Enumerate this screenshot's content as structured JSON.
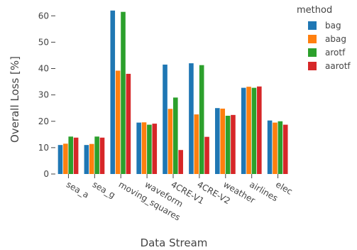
{
  "chart_data": {
    "type": "bar",
    "xlabel": "Data Stream",
    "ylabel": "Overall Loss [%]",
    "ylim": [
      0,
      66
    ],
    "yticks": [
      0,
      10,
      20,
      30,
      40,
      50,
      60
    ],
    "grid": false,
    "legend": {
      "title": "method",
      "placement": "top-right"
    },
    "categories": [
      "sea_a",
      "sea_g",
      "moving_squares",
      "waveform",
      "4CRE-V1",
      "4CRE-V2",
      "weather",
      "airlines",
      "elec"
    ],
    "series": [
      {
        "name": "bag",
        "color": "#1f77b4",
        "values": [
          11.0,
          11.0,
          62.0,
          19.5,
          41.5,
          42.0,
          25.0,
          32.7,
          20.3
        ]
      },
      {
        "name": "abag",
        "color": "#ff7f0e",
        "values": [
          11.5,
          11.4,
          39.2,
          19.6,
          24.7,
          22.6,
          24.8,
          33.1,
          19.5
        ]
      },
      {
        "name": "arotf",
        "color": "#2ca02c",
        "values": [
          14.2,
          14.2,
          61.5,
          18.7,
          29.0,
          41.3,
          22.1,
          32.7,
          20.0
        ]
      },
      {
        "name": "aarotf",
        "color": "#d62728",
        "values": [
          13.8,
          13.8,
          38.0,
          19.1,
          9.1,
          14.1,
          22.4,
          33.2,
          18.7
        ]
      }
    ]
  }
}
